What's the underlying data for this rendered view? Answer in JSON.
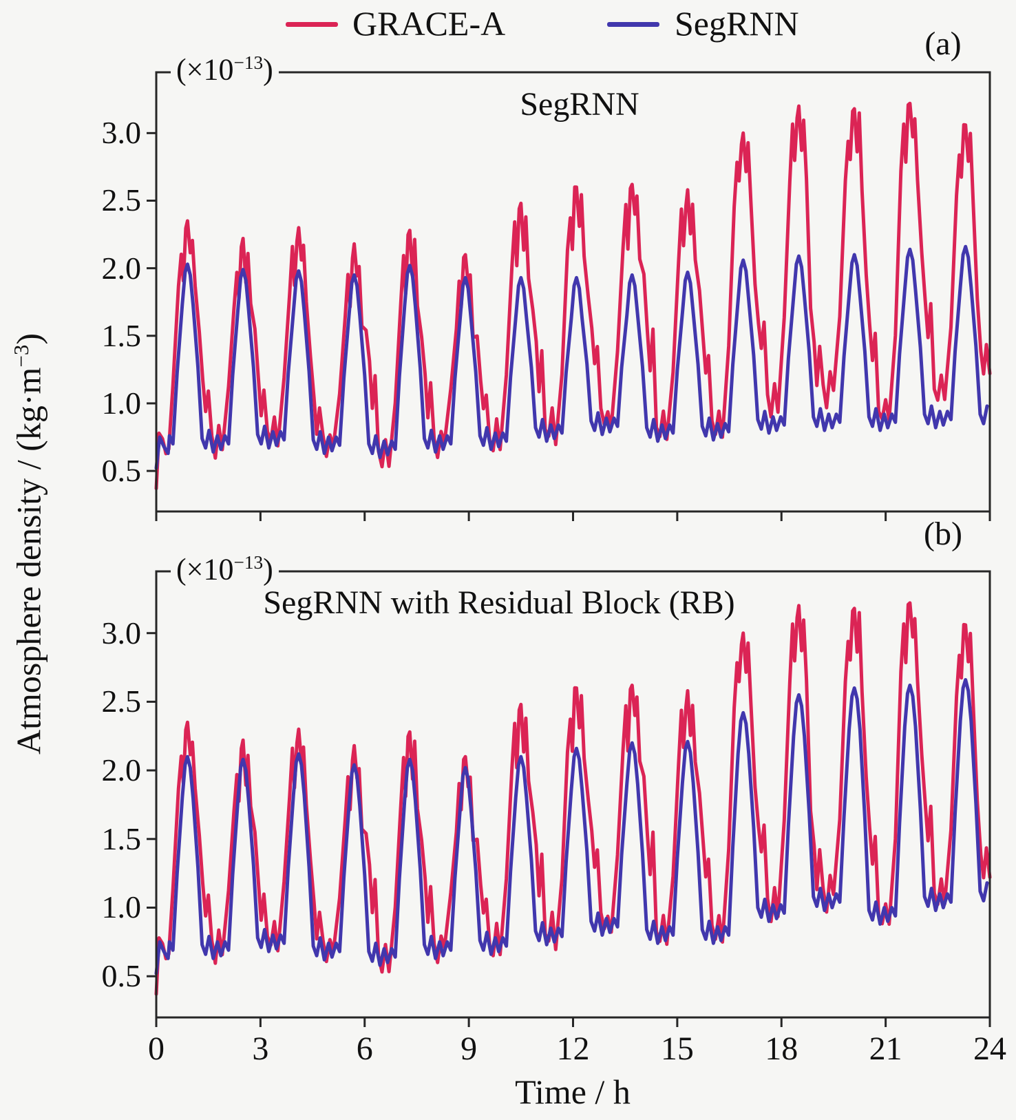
{
  "chart_data": {
    "type": "line",
    "xlabel": "Time / h",
    "ylabel_parts": {
      "text": "Atmosphere density / (kg·m",
      "sup": "−3",
      "close": ")"
    },
    "scale_label_parts": {
      "text": "(×10",
      "sup": "−13",
      "close": ")"
    },
    "x_range": [
      0,
      24
    ],
    "y_range": [
      0.2,
      3.45
    ],
    "x_ticks": [
      0,
      3,
      6,
      9,
      12,
      15,
      18,
      21,
      24
    ],
    "y_ticks": [
      "0.5",
      "1.0",
      "1.5",
      "2.0",
      "2.5",
      "3.0"
    ],
    "grid": false,
    "legend_position": "top-center",
    "legend": [
      {
        "label": "GRACE-A",
        "color": "#DB2455"
      },
      {
        "label": "SegRNN",
        "color": "#4137AD"
      }
    ],
    "orbit_period_h": 1.6,
    "first_peak_h": 0.9,
    "grace": {
      "name": "GRACE-A",
      "peaks": [
        2.35,
        2.22,
        2.3,
        2.18,
        2.28,
        2.1,
        2.48,
        2.6,
        2.62,
        2.58,
        3.0,
        3.2,
        3.18,
        3.22,
        3.06
      ],
      "troughs": [
        0.62,
        0.66,
        0.6,
        0.55,
        0.62,
        0.65,
        0.72,
        0.8,
        0.7,
        0.72,
        0.95,
        1.0,
        0.85,
        1.0,
        1.05
      ],
      "shoulders": [
        1.18,
        1.22,
        1.1,
        1.3,
        1.25,
        1.2,
        1.4,
        1.55,
        1.6,
        1.5,
        1.65,
        1.45,
        1.6,
        1.8,
        1.45
      ]
    },
    "panels": [
      {
        "corner_label": "(a)",
        "title": "SegRNN",
        "model_name": "SegRNN",
        "model_peaks": [
          2.03,
          1.99,
          1.98,
          1.95,
          2.02,
          1.93,
          1.93,
          1.93,
          1.95,
          1.97,
          2.06,
          2.09,
          2.1,
          2.14,
          2.16
        ],
        "model_troughs": [
          0.64,
          0.67,
          0.63,
          0.6,
          0.64,
          0.66,
          0.72,
          0.77,
          0.72,
          0.73,
          0.78,
          0.8,
          0.8,
          0.82,
          0.82
        ]
      },
      {
        "corner_label": "(b)",
        "title": "SegRNN with Residual Block (RB)",
        "model_name": "SegRNN with Residual Block (RB)",
        "model_peaks": [
          2.1,
          2.08,
          2.12,
          2.04,
          2.08,
          2.02,
          2.1,
          2.16,
          2.2,
          2.21,
          2.42,
          2.55,
          2.6,
          2.62,
          2.66
        ],
        "model_troughs": [
          0.63,
          0.68,
          0.62,
          0.58,
          0.63,
          0.66,
          0.73,
          0.8,
          0.74,
          0.74,
          0.9,
          0.98,
          0.88,
          0.98,
          1.02
        ]
      }
    ],
    "axis_color": "#262626",
    "text_color": "#111111"
  }
}
